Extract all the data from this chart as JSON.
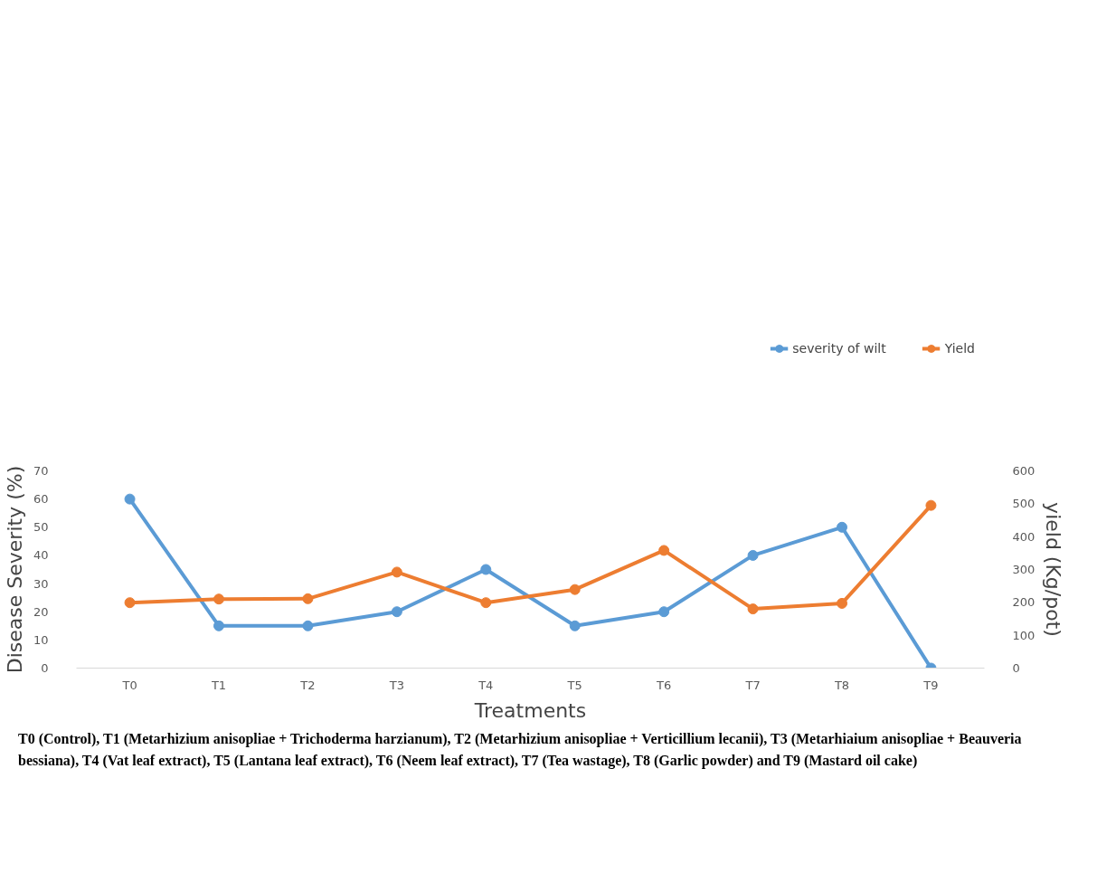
{
  "chart_data": {
    "type": "line",
    "categories": [
      "T0",
      "T1",
      "T2",
      "T3",
      "T4",
      "T5",
      "T6",
      "T7",
      "T8",
      "T9"
    ],
    "xlabel": "Treatments",
    "ylabel": "Disease Severity (%)",
    "y2label": "yield (Kg/pot)",
    "series": [
      {
        "name": "severity of wilt",
        "color": "#5b9bd5",
        "values": [
          60,
          15,
          15,
          20,
          35,
          15,
          20,
          40,
          50,
          0
        ]
      },
      {
        "name": "Yield",
        "color": "#ed7d31",
        "axis": "y2",
        "values": [
          199,
          210,
          211,
          292,
          199,
          239,
          358,
          180,
          197,
          495
        ]
      }
    ],
    "ylim": [
      0,
      70
    ],
    "yticks": [
      0,
      10,
      20,
      30,
      40,
      50,
      60,
      70
    ],
    "y2lim": [
      0,
      600
    ],
    "y2ticks": [
      0,
      100,
      200,
      300,
      400,
      500,
      600
    ],
    "marker": "circle",
    "grid": false,
    "legend": "top right",
    "annotations": [
      "T0 (Control), T1 (Metarhizium anisopliae + Trichoderma harzianum), T2 (Metarhizium anisopliae + Verticillium lecanii), T3 (Metarhiaium anisopliae + Beauveria bessiana), T4 (Vat leaf extract), T5 (Lantana leaf extract), T6 (Neem leaf extract), T7 (Tea wastage), T8 (Garlic powder) and T9 (Mastard oil cake)"
    ]
  }
}
